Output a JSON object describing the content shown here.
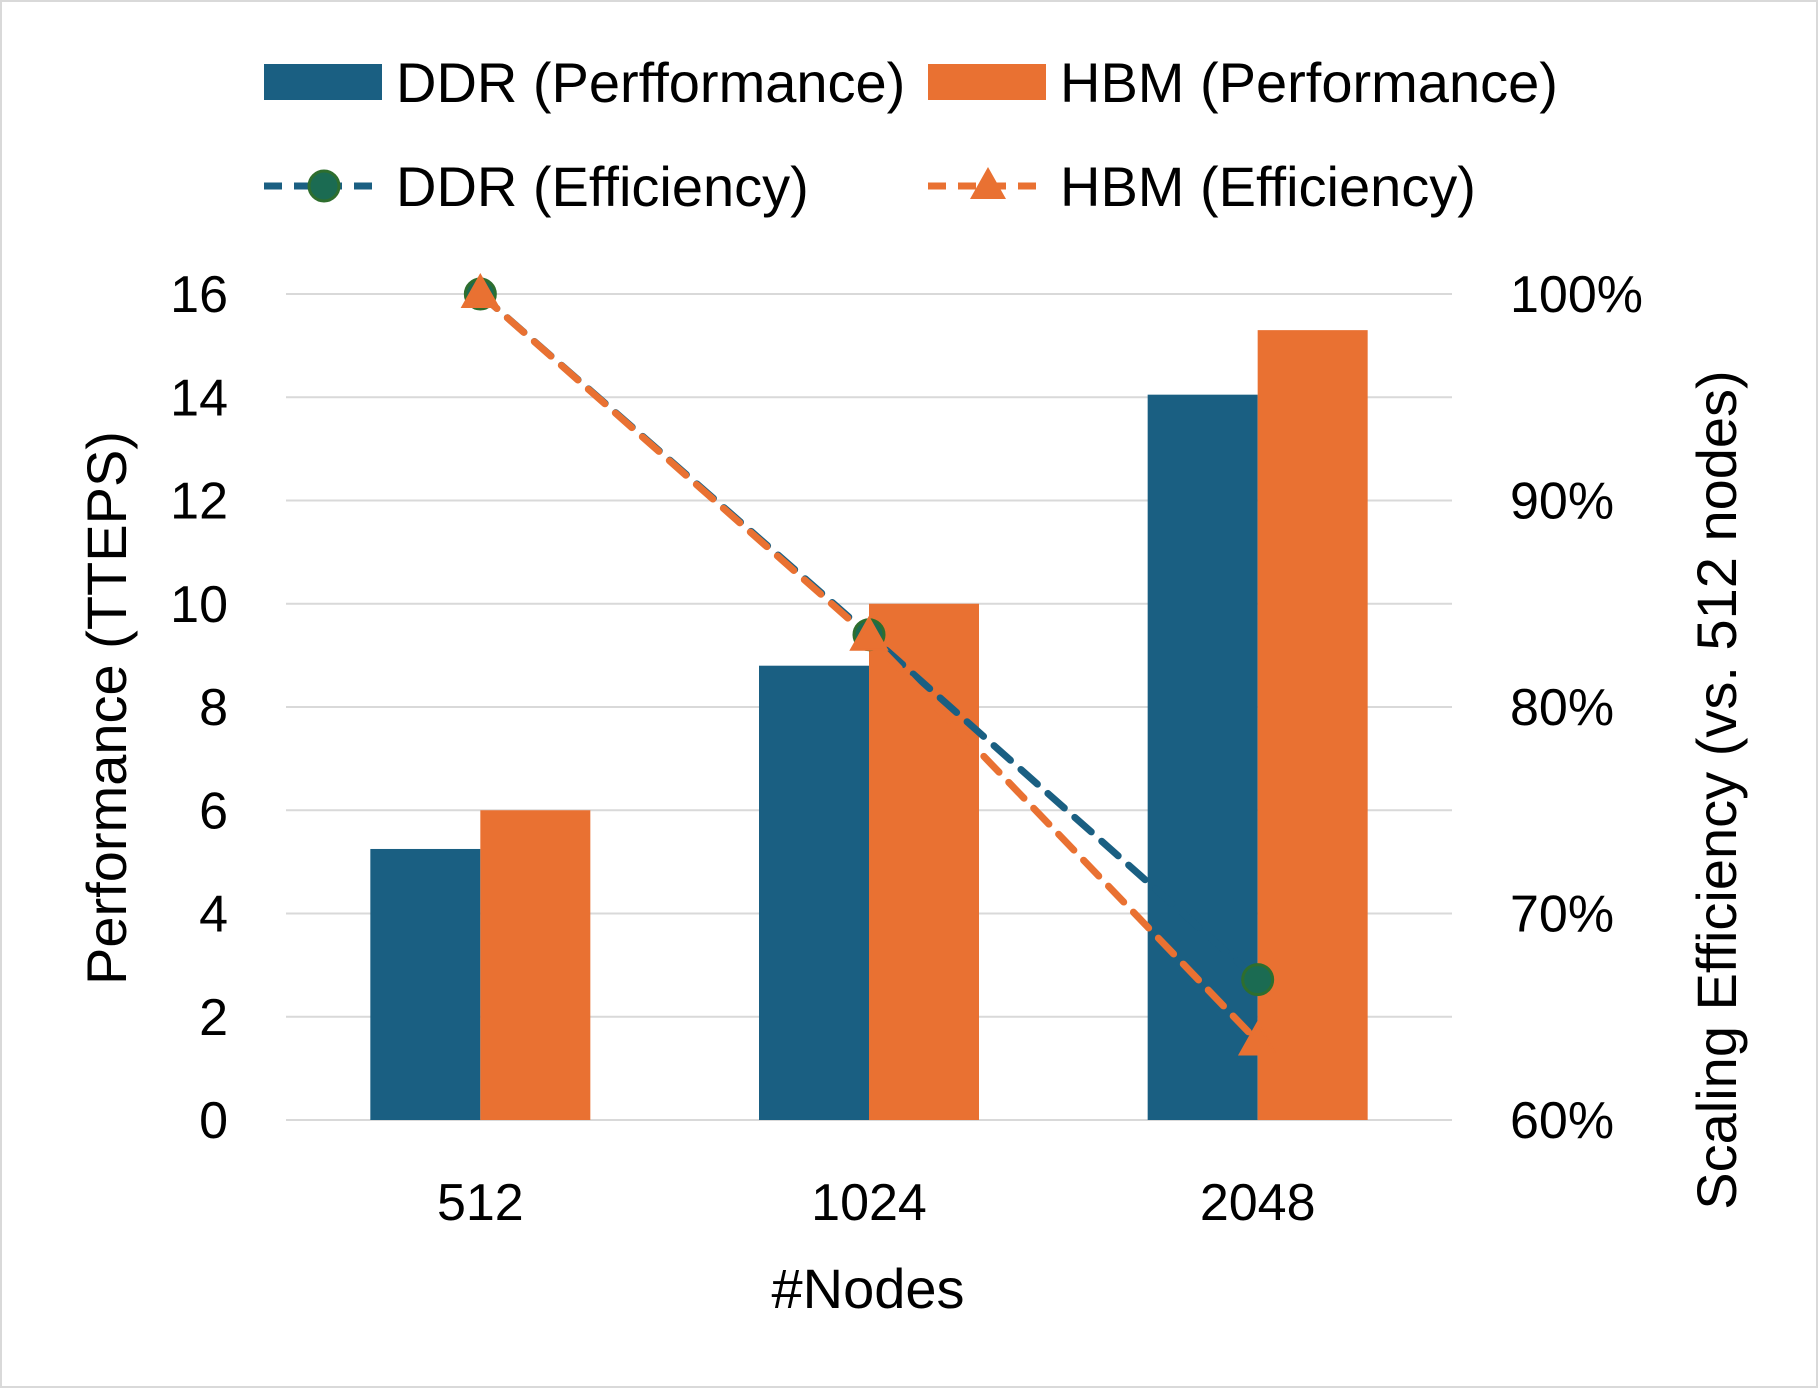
{
  "colors": {
    "ddr": "#1a5f82",
    "hbm": "#e97132",
    "ddr_marker_fill": "#1b6b52",
    "ddr_marker_stroke": "#2e6e2e",
    "grid": "#d9d9d9"
  },
  "chart_data": {
    "type": "bar",
    "categories": [
      "512",
      "1024",
      "2048"
    ],
    "xlabel": "#Nodes",
    "ylabel": "Performance (TTEPS)",
    "y2label": "Scaling Efficiency (vs. 512 nodes)",
    "ylim": [
      0,
      16
    ],
    "yticks": [
      "0",
      "2",
      "4",
      "6",
      "8",
      "10",
      "12",
      "14",
      "16"
    ],
    "y2lim": [
      60,
      100
    ],
    "y2ticks": [
      "60%",
      "70%",
      "80%",
      "90%",
      "100%"
    ],
    "grid": true,
    "legend_position": "top",
    "series": [
      {
        "name": "DDR (Perfformance)",
        "kind": "bar",
        "axis": "left",
        "values": [
          5.25,
          8.8,
          14.05
        ]
      },
      {
        "name": "HBM (Performance)",
        "kind": "bar",
        "axis": "left",
        "values": [
          6.0,
          10.0,
          15.3
        ]
      },
      {
        "name": "DDR (Efficiency)",
        "kind": "line",
        "axis": "right",
        "marker": "circle",
        "values": [
          100,
          83.5,
          66.8
        ]
      },
      {
        "name": "HBM (Efficiency)",
        "kind": "line",
        "axis": "right",
        "marker": "triangle",
        "values": [
          100,
          83.4,
          63.8
        ]
      }
    ]
  }
}
